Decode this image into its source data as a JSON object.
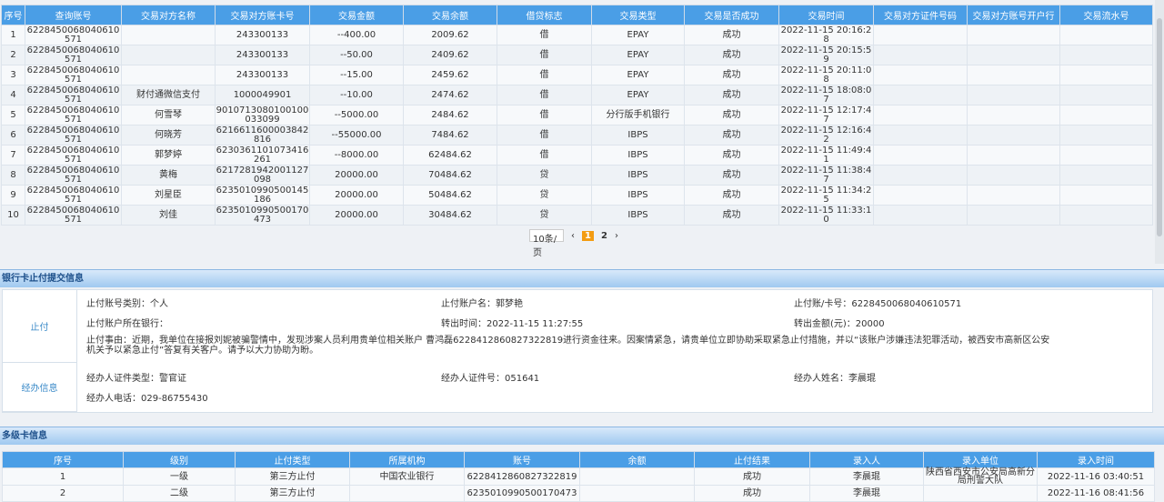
{
  "transactions": {
    "headers": [
      "序号",
      "查询账号",
      "交易对方名称",
      "交易对方账卡号",
      "交易金额",
      "交易余额",
      "借贷标志",
      "交易类型",
      "交易是否成功",
      "交易时间",
      "交易对方证件号码",
      "交易对方账号开户行",
      "交易流水号"
    ],
    "rows": [
      [
        "1",
        "6228450068040610571",
        "",
        "243300133",
        "--400.00",
        "2009.62",
        "借",
        "EPAY",
        "成功",
        "2022-11-15 20:16:28",
        "",
        "",
        ""
      ],
      [
        "2",
        "6228450068040610571",
        "",
        "243300133",
        "--50.00",
        "2409.62",
        "借",
        "EPAY",
        "成功",
        "2022-11-15 20:15:59",
        "",
        "",
        ""
      ],
      [
        "3",
        "6228450068040610571",
        "",
        "243300133",
        "--15.00",
        "2459.62",
        "借",
        "EPAY",
        "成功",
        "2022-11-15 20:11:08",
        "",
        "",
        ""
      ],
      [
        "4",
        "6228450068040610571",
        "财付通微信支付",
        "1000049901",
        "--10.00",
        "2474.62",
        "借",
        "EPAY",
        "成功",
        "2022-11-15 18:08:07",
        "",
        "",
        ""
      ],
      [
        "5",
        "6228450068040610571",
        "何雪琴",
        "9010713080100100033099",
        "--5000.00",
        "2484.62",
        "借",
        "分行版手机银行",
        "成功",
        "2022-11-15 12:17:47",
        "",
        "",
        ""
      ],
      [
        "6",
        "6228450068040610571",
        "何晓芳",
        "6216611600003842816",
        "--55000.00",
        "7484.62",
        "借",
        "IBPS",
        "成功",
        "2022-11-15 12:16:42",
        "",
        "",
        ""
      ],
      [
        "7",
        "6228450068040610571",
        "郭梦婷",
        "6230361101073416261",
        "--8000.00",
        "62484.62",
        "借",
        "IBPS",
        "成功",
        "2022-11-15 11:49:41",
        "",
        "",
        ""
      ],
      [
        "8",
        "6228450068040610571",
        "黄梅",
        "6217281942001127098",
        "20000.00",
        "70484.62",
        "贷",
        "IBPS",
        "成功",
        "2022-11-15 11:38:47",
        "",
        "",
        ""
      ],
      [
        "9",
        "6228450068040610571",
        "刘星臣",
        "6235010990500145186",
        "20000.00",
        "50484.62",
        "贷",
        "IBPS",
        "成功",
        "2022-11-15 11:34:25",
        "",
        "",
        ""
      ],
      [
        "10",
        "6228450068040610571",
        "刘佳",
        "6235010990500170473",
        "20000.00",
        "30484.62",
        "贷",
        "IBPS",
        "成功",
        "2022-11-15 11:33:10",
        "",
        "",
        ""
      ]
    ]
  },
  "pager": {
    "page_size": "10条/页",
    "prev": "‹",
    "pages": [
      "1",
      "2"
    ],
    "current": "1",
    "next": "›"
  },
  "stop_section": {
    "title": "银行卡止付提交信息",
    "label_stop": "止付",
    "account_type": "止付账号类别：个人",
    "account_name": "止付账户名：郭梦艳",
    "account_no": "止付账/卡号：6228450068040610571",
    "bank": "止付账户所在银行：",
    "transfer_time": "转出时间：2022-11-15 11:27:55",
    "transfer_amount": "转出金额(元)：20000",
    "reason": "止付事由：近期，我单位在接报刘妮被骗警情中，发现涉案人员利用贵单位相关账户 曹鸿磊6228412860827322819进行资金往来。因案情紧急，请贵单位立即协助采取紧急止付措施，并以“该账户涉嫌违法犯罪活动，被西安市高新区公安机关予以紧急止付”答复有关客户。请予以大力协助为盼。",
    "label_handler": "经办信息",
    "handler_id_type": "经办人证件类型：警官证",
    "handler_id_no": "经办人证件号：051641",
    "handler_name": "经办人姓名：李晨琨",
    "handler_phone": "经办人电话：029-86755430"
  },
  "multilevel": {
    "title": "多级卡信息",
    "headers": [
      "序号",
      "级别",
      "止付类型",
      "所属机构",
      "账号",
      "余额",
      "止付结果",
      "录入人",
      "录入单位",
      "录入时间"
    ],
    "rows": [
      [
        "1",
        "一级",
        "第三方止付",
        "中国农业银行",
        "6228412860827322819",
        "",
        "成功",
        "李晨琨",
        "陕西省西安市公安局高新分局刑警大队",
        "2022-11-16 03:40:51"
      ],
      [
        "2",
        "二级",
        "第三方止付",
        "",
        "6235010990500170473",
        "",
        "成功",
        "李晨琨",
        "",
        "2022-11-16 08:41:56"
      ]
    ]
  }
}
